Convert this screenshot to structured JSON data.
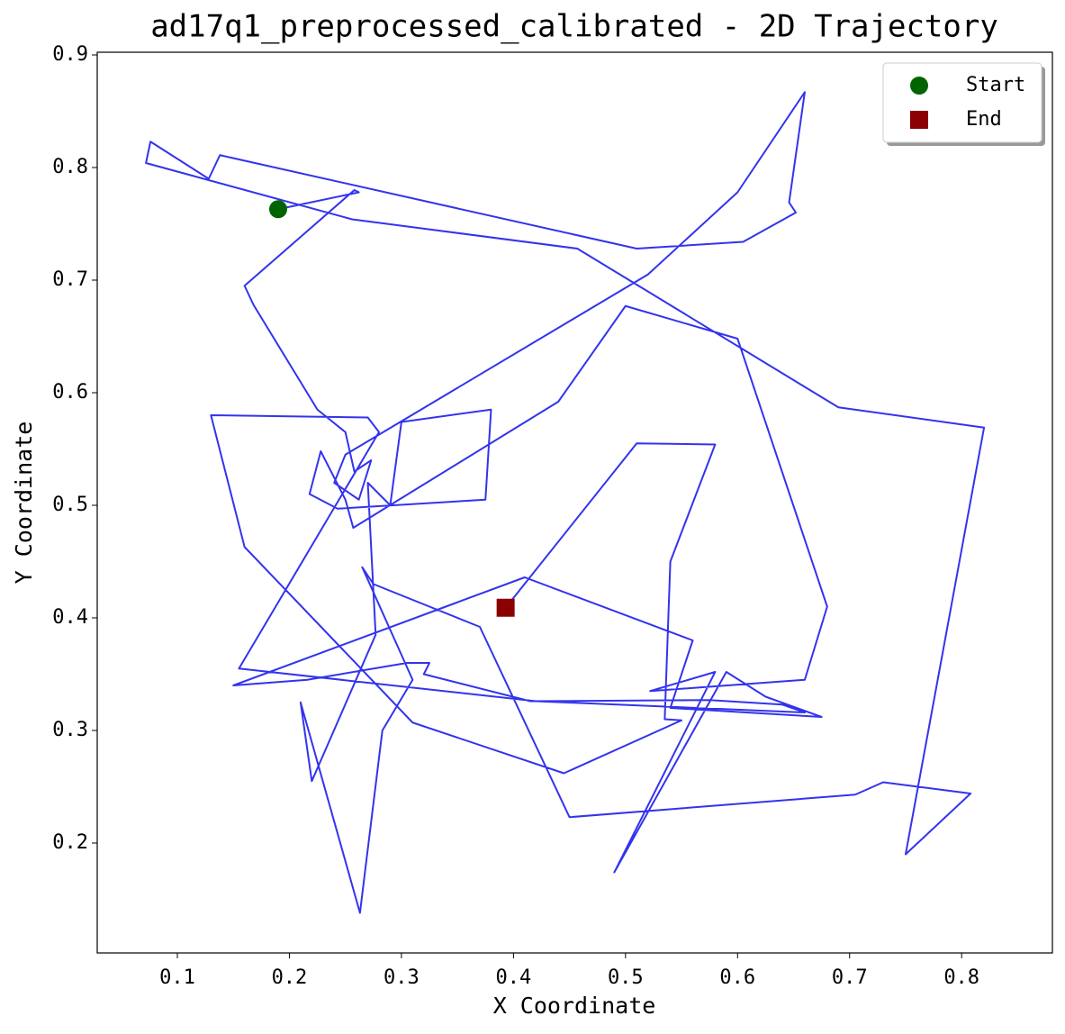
{
  "chart_data": {
    "type": "line",
    "title": "ad17q1_preprocessed_calibrated - 2D Trajectory",
    "x_label": "X Coordinate",
    "y_label": "Y Coordinate",
    "xlim": [
      0.0285,
      0.881
    ],
    "ylim": [
      0.1024,
      0.9024
    ],
    "xticks": [
      0.1,
      0.2,
      0.3,
      0.4,
      0.5,
      0.6,
      0.7,
      0.8
    ],
    "yticks": [
      0.2,
      0.3,
      0.4,
      0.5,
      0.6,
      0.7,
      0.8,
      0.9
    ],
    "grid": false,
    "legend": "upper right",
    "series": [
      {
        "color": "#3333ee",
        "x": [
          0.19,
          0.262,
          0.258,
          0.16,
          0.168,
          0.225,
          0.25,
          0.258,
          0.273,
          0.262,
          0.24,
          0.25,
          0.52,
          0.6,
          0.66,
          0.646,
          0.652,
          0.605,
          0.51,
          0.138,
          0.128,
          0.076,
          0.072,
          0.256,
          0.457,
          0.69,
          0.82,
          0.75,
          0.808,
          0.73,
          0.705,
          0.45,
          0.37,
          0.275,
          0.265,
          0.31,
          0.283,
          0.263,
          0.21,
          0.22,
          0.277,
          0.27,
          0.29,
          0.3,
          0.38,
          0.375,
          0.243,
          0.218,
          0.228,
          0.25,
          0.257,
          0.44,
          0.5,
          0.6,
          0.68,
          0.66,
          0.522,
          0.58,
          0.49,
          0.59,
          0.625,
          0.675,
          0.54,
          0.56,
          0.41,
          0.15,
          0.216,
          0.305,
          0.325,
          0.32,
          0.415,
          0.575,
          0.64,
          0.66,
          0.42,
          0.155,
          0.28,
          0.27,
          0.13,
          0.16,
          0.31,
          0.445,
          0.55,
          0.535,
          0.54,
          0.58,
          0.51,
          0.393
        ],
        "y": [
          0.763,
          0.778,
          0.78,
          0.695,
          0.678,
          0.585,
          0.565,
          0.53,
          0.54,
          0.505,
          0.52,
          0.545,
          0.705,
          0.778,
          0.867,
          0.769,
          0.76,
          0.734,
          0.728,
          0.811,
          0.79,
          0.823,
          0.804,
          0.754,
          0.728,
          0.587,
          0.569,
          0.19,
          0.244,
          0.254,
          0.243,
          0.223,
          0.392,
          0.43,
          0.445,
          0.345,
          0.3,
          0.138,
          0.325,
          0.255,
          0.385,
          0.52,
          0.5,
          0.574,
          0.585,
          0.505,
          0.497,
          0.51,
          0.548,
          0.505,
          0.48,
          0.592,
          0.677,
          0.648,
          0.41,
          0.345,
          0.335,
          0.352,
          0.174,
          0.352,
          0.33,
          0.312,
          0.32,
          0.38,
          0.436,
          0.34,
          0.345,
          0.36,
          0.36,
          0.35,
          0.326,
          0.327,
          0.323,
          0.316,
          0.326,
          0.355,
          0.565,
          0.578,
          0.58,
          0.463,
          0.307,
          0.262,
          0.309,
          0.31,
          0.45,
          0.554,
          0.555,
          0.409
        ]
      }
    ],
    "markers": [
      {
        "name": "Start",
        "color": "#006400",
        "shape": "circle",
        "x": 0.19,
        "y": 0.763
      },
      {
        "name": "End",
        "color": "#8b0000",
        "shape": "square",
        "x": 0.393,
        "y": 0.409
      }
    ]
  }
}
